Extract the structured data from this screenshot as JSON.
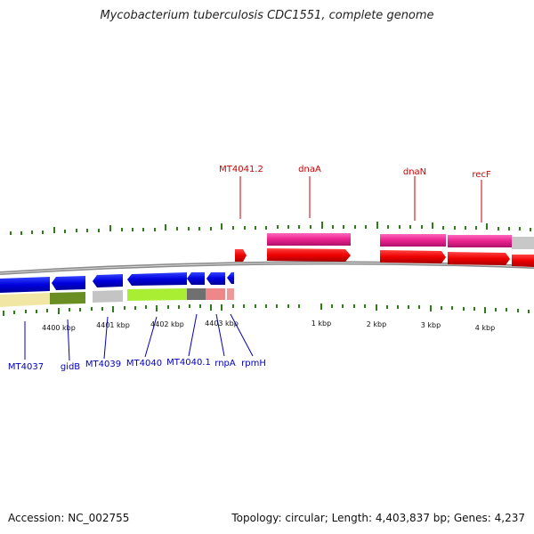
{
  "title": "Mycobacterium tuberculosis CDC1551, complete genome",
  "footer": {
    "accession": "Accession: NC_002755",
    "stats": "Topology: circular; Length: 4,403,837 bp; Genes: 4,237"
  },
  "colors": {
    "tick": "#2e7d1a",
    "label_red": "#cc0000",
    "label_blue": "#0000bb",
    "backbone": "#8a8a8a"
  },
  "kbp_labels": [
    "4400 kbp",
    "4401 kbp",
    "4402 kbp",
    "4403 kbp",
    "1 kbp",
    "2 kbp",
    "3 kbp",
    "4 kbp"
  ],
  "top_gene_labels": [
    "MT4041.2",
    "dnaA",
    "dnaN",
    "recF"
  ],
  "bottom_gene_labels": [
    "MT4037",
    "gidB",
    "MT4039",
    "MT4040",
    "MT4040.1",
    "rnpA",
    "rpmH"
  ]
}
